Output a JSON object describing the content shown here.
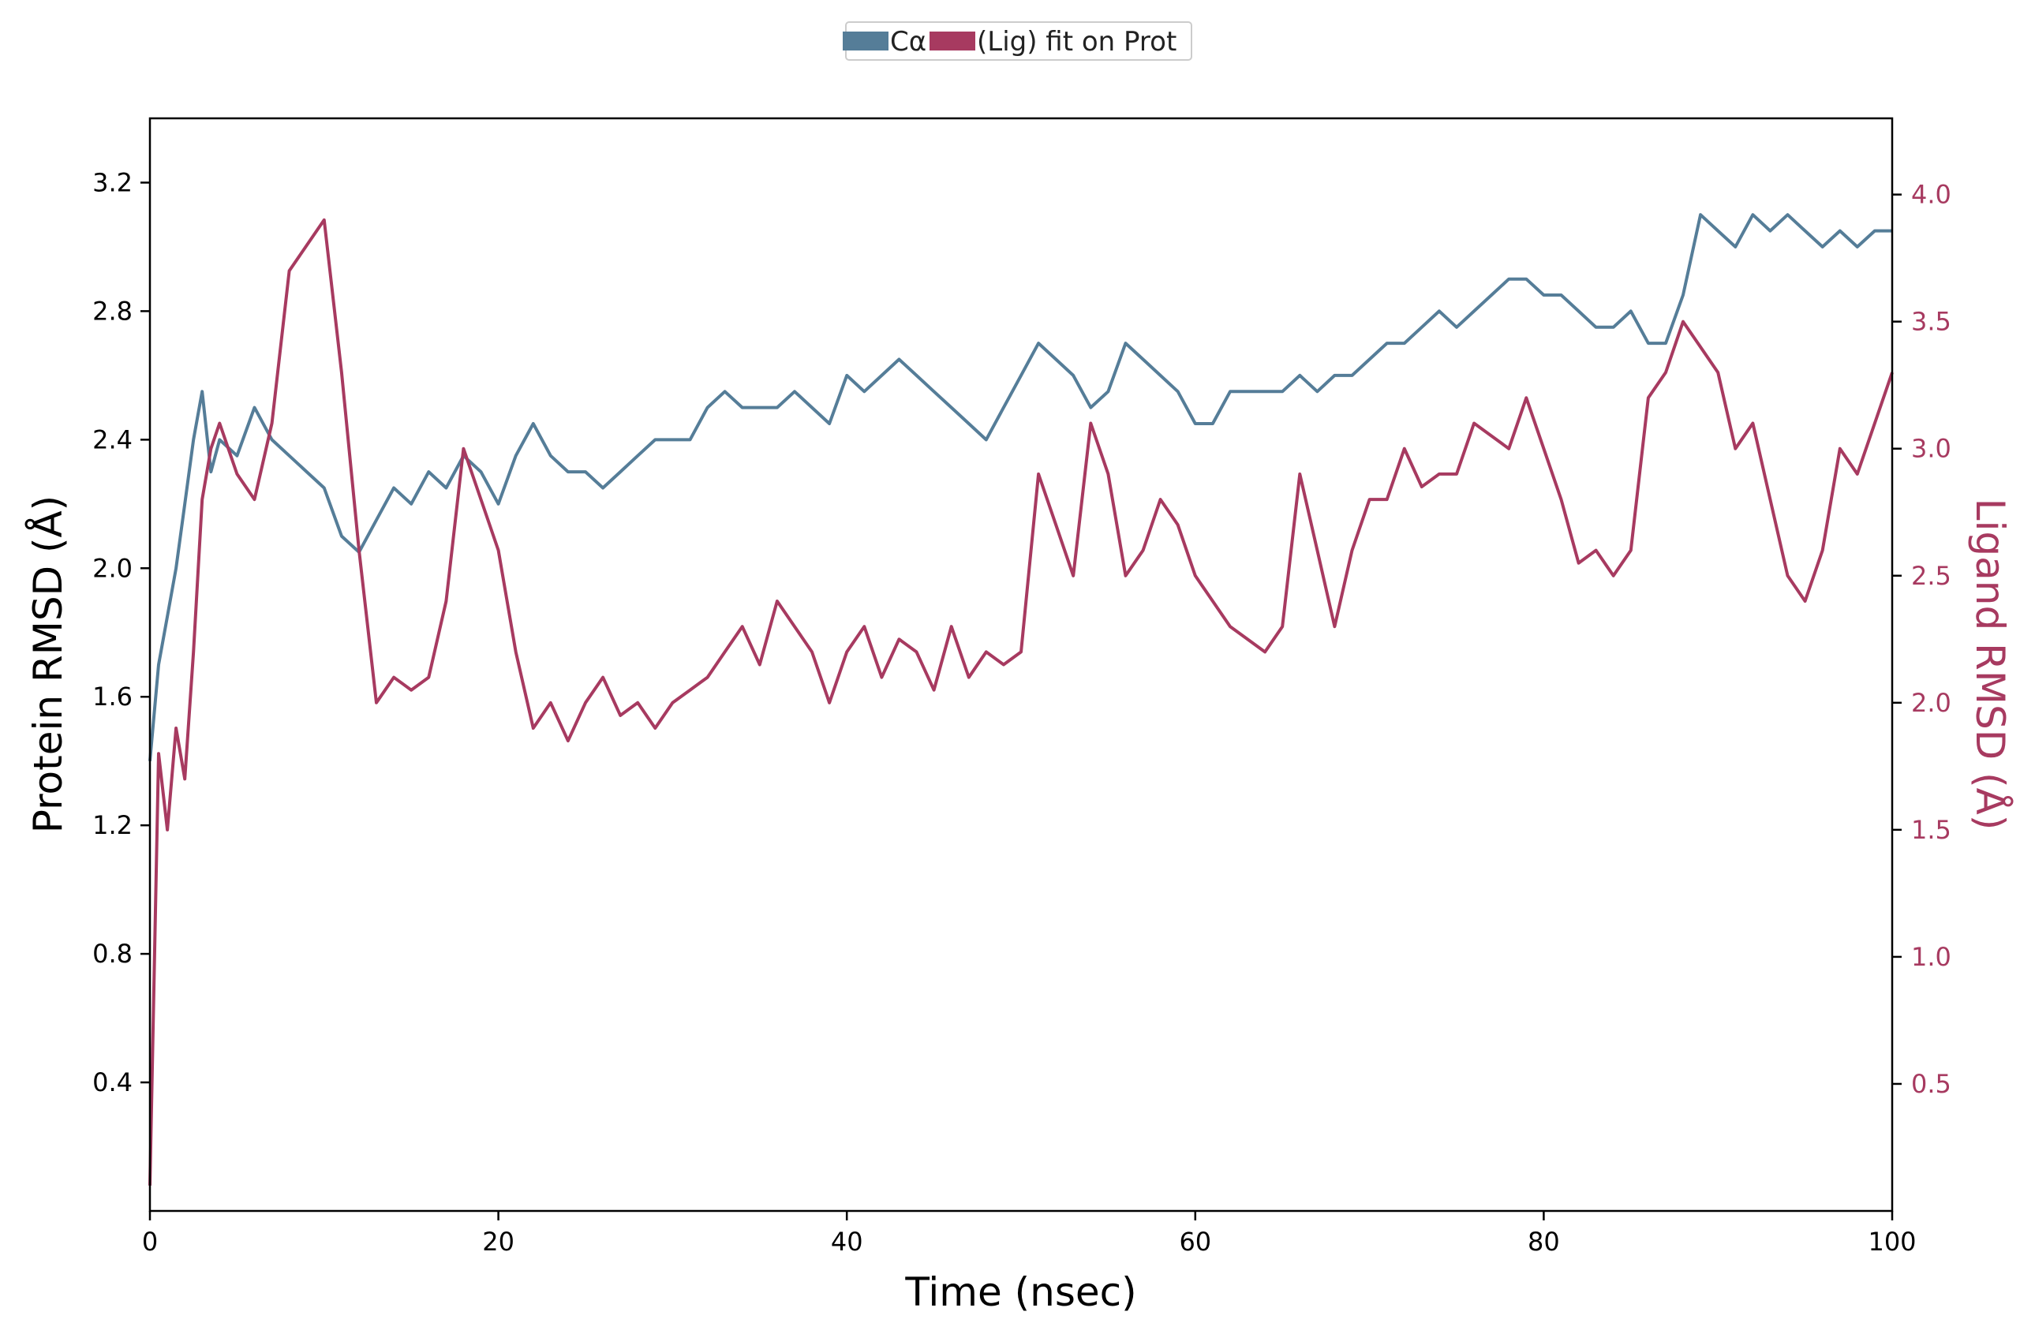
{
  "chart_data": {
    "type": "line",
    "xlabel": "Time (nsec)",
    "ylabel_left": "Protein RMSD (Å)",
    "ylabel_right": "Ligand RMSD (Å)",
    "xlim": [
      0,
      100
    ],
    "ylim_left": [
      0,
      3.4
    ],
    "ylim_right": [
      0,
      4.3
    ],
    "x_ticks": [
      0,
      20,
      40,
      60,
      80,
      100
    ],
    "y_ticks_left": [
      0.4,
      0.8,
      1.2,
      1.6,
      2.0,
      2.4,
      2.8,
      3.2
    ],
    "y_ticks_right": [
      0.5,
      1.0,
      1.5,
      2.0,
      2.5,
      3.0,
      3.5,
      4.0
    ],
    "grid": false,
    "legend": {
      "placement": "top-center",
      "labels": [
        "Cα",
        "(Lig) fit on Prot"
      ]
    },
    "series": [
      {
        "name": "Cα",
        "axis": "left",
        "color": "#557d98",
        "x": [
          0,
          0.5,
          1,
          1.5,
          2,
          2.5,
          3,
          3.5,
          4,
          5,
          6,
          7,
          8,
          9,
          10,
          11,
          12,
          13,
          14,
          15,
          16,
          17,
          18,
          19,
          20,
          21,
          22,
          23,
          24,
          25,
          26,
          27,
          28,
          29,
          30,
          31,
          32,
          33,
          34,
          35,
          36,
          37,
          38,
          39,
          40,
          41,
          42,
          43,
          44,
          45,
          46,
          47,
          48,
          49,
          50,
          51,
          52,
          53,
          54,
          55,
          56,
          57,
          58,
          59,
          60,
          61,
          62,
          63,
          64,
          65,
          66,
          67,
          68,
          69,
          70,
          71,
          72,
          73,
          74,
          75,
          76,
          77,
          78,
          79,
          80,
          81,
          82,
          83,
          84,
          85,
          86,
          87,
          88,
          89,
          90,
          91,
          92,
          93,
          94,
          95,
          96,
          97,
          98,
          99,
          100
        ],
        "values": [
          1.4,
          1.7,
          1.85,
          2.0,
          2.2,
          2.4,
          2.55,
          2.3,
          2.4,
          2.35,
          2.5,
          2.4,
          2.35,
          2.3,
          2.25,
          2.1,
          2.05,
          2.15,
          2.25,
          2.2,
          2.3,
          2.25,
          2.35,
          2.3,
          2.2,
          2.35,
          2.45,
          2.35,
          2.3,
          2.3,
          2.25,
          2.3,
          2.35,
          2.4,
          2.4,
          2.4,
          2.5,
          2.55,
          2.5,
          2.5,
          2.5,
          2.55,
          2.5,
          2.45,
          2.6,
          2.55,
          2.6,
          2.65,
          2.6,
          2.55,
          2.5,
          2.45,
          2.4,
          2.5,
          2.6,
          2.7,
          2.65,
          2.6,
          2.5,
          2.55,
          2.7,
          2.65,
          2.6,
          2.55,
          2.45,
          2.45,
          2.55,
          2.55,
          2.55,
          2.55,
          2.6,
          2.55,
          2.6,
          2.6,
          2.65,
          2.7,
          2.7,
          2.75,
          2.8,
          2.75,
          2.8,
          2.85,
          2.9,
          2.9,
          2.85,
          2.85,
          2.8,
          2.75,
          2.75,
          2.8,
          2.7,
          2.7,
          2.85,
          3.1,
          3.05,
          3.0,
          3.1,
          3.05,
          3.1,
          3.05,
          3.0,
          3.05,
          3.0,
          3.05,
          3.05
        ]
      },
      {
        "name": "(Lig) fit on Prot",
        "axis": "right",
        "color": "#a73a60",
        "x": [
          0,
          0.5,
          1,
          1.5,
          2,
          2.5,
          3,
          3.5,
          4,
          5,
          6,
          7,
          8,
          9,
          10,
          11,
          12,
          13,
          14,
          15,
          16,
          17,
          18,
          19,
          20,
          21,
          22,
          23,
          24,
          25,
          26,
          27,
          28,
          29,
          30,
          31,
          32,
          33,
          34,
          35,
          36,
          37,
          38,
          39,
          40,
          41,
          42,
          43,
          44,
          45,
          46,
          47,
          48,
          49,
          50,
          51,
          52,
          53,
          54,
          55,
          56,
          57,
          58,
          59,
          60,
          61,
          62,
          63,
          64,
          65,
          66,
          67,
          68,
          69,
          70,
          71,
          72,
          73,
          74,
          75,
          76,
          77,
          78,
          79,
          80,
          81,
          82,
          83,
          84,
          85,
          86,
          87,
          88,
          89,
          90,
          91,
          92,
          93,
          94,
          95,
          96,
          97,
          98,
          99,
          100
        ],
        "values": [
          0.1,
          1.8,
          1.5,
          1.9,
          1.7,
          2.2,
          2.8,
          3.0,
          3.1,
          2.9,
          2.8,
          3.1,
          3.7,
          3.8,
          3.9,
          3.3,
          2.6,
          2.0,
          2.1,
          2.05,
          2.1,
          2.4,
          3.0,
          2.8,
          2.6,
          2.2,
          1.9,
          2.0,
          1.85,
          2.0,
          2.1,
          1.95,
          2.0,
          1.9,
          2.0,
          2.05,
          2.1,
          2.2,
          2.3,
          2.15,
          2.4,
          2.3,
          2.2,
          2.0,
          2.2,
          2.3,
          2.1,
          2.25,
          2.2,
          2.05,
          2.3,
          2.1,
          2.2,
          2.15,
          2.2,
          2.9,
          2.7,
          2.5,
          3.1,
          2.9,
          2.5,
          2.6,
          2.8,
          2.7,
          2.5,
          2.4,
          2.3,
          2.25,
          2.2,
          2.3,
          2.9,
          2.6,
          2.3,
          2.6,
          2.8,
          2.8,
          3.0,
          2.85,
          2.9,
          2.9,
          3.1,
          3.05,
          3.0,
          3.2,
          3.0,
          2.8,
          2.55,
          2.6,
          2.5,
          2.6,
          3.2,
          3.3,
          3.5,
          3.4,
          3.3,
          3.0,
          3.1,
          2.8,
          2.5,
          2.4,
          2.6,
          3.0,
          2.9,
          3.1,
          3.3
        ]
      }
    ]
  }
}
